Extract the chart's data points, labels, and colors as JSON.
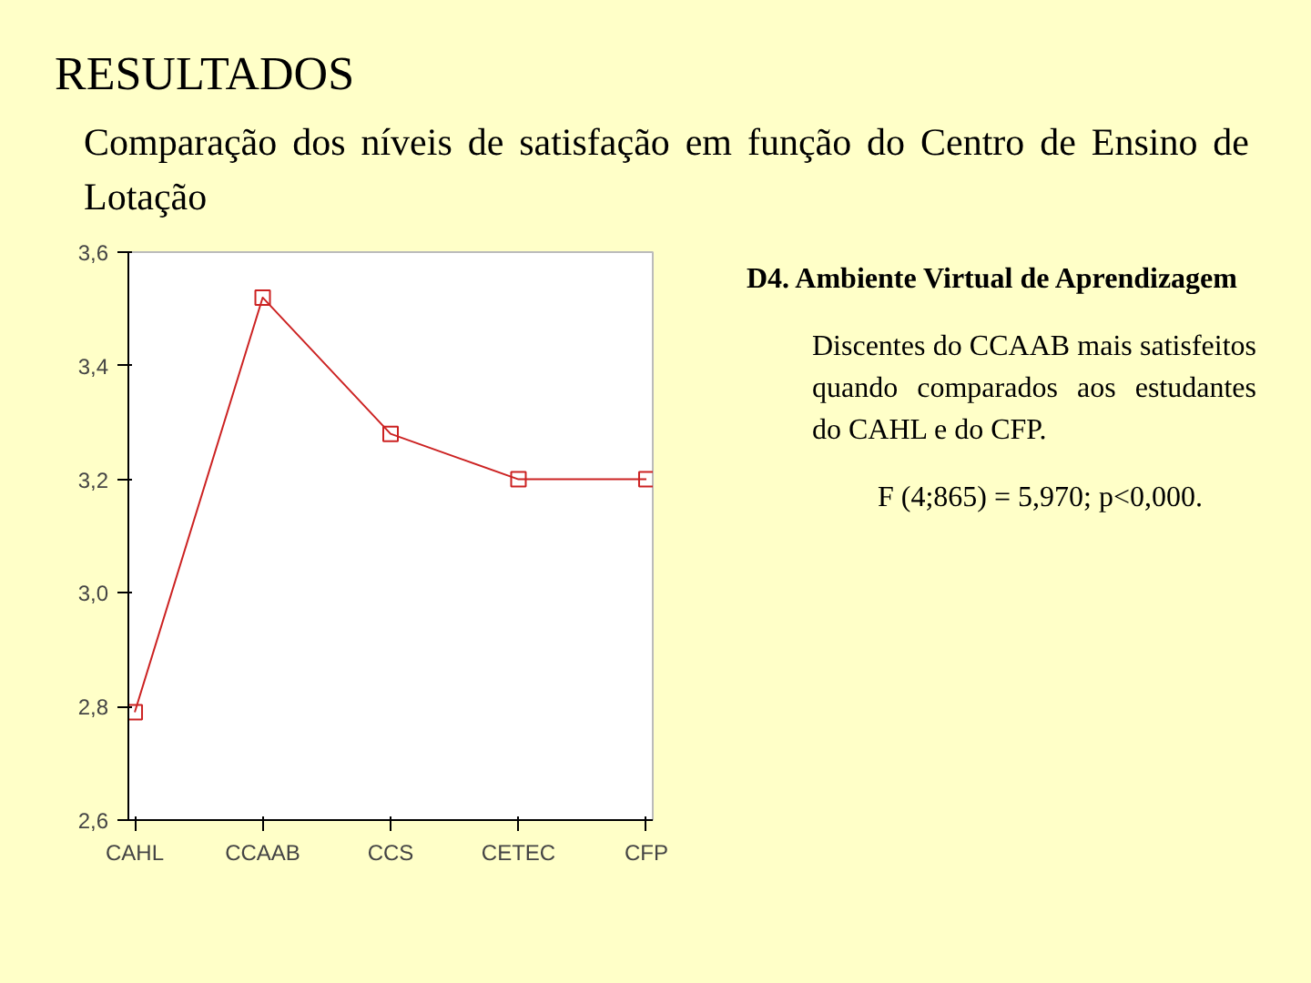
{
  "chart_data": {
    "type": "line",
    "title": "RESULTADOS",
    "subtitle": "Comparação dos níveis de satisfação em função do Centro de Ensino de Lotação",
    "categories": [
      "CAHL",
      "CCAAB",
      "CCS",
      "CETEC",
      "CFP"
    ],
    "values": [
      2.79,
      3.52,
      3.28,
      3.2,
      3.2
    ],
    "color": "#cc2222",
    "marker": "square",
    "line_style": "solid",
    "grid": false,
    "ylim": [
      2.6,
      3.6
    ],
    "yticks": [
      {
        "value": 2.6,
        "label": "2,6"
      },
      {
        "value": 2.8,
        "label": "2,8"
      },
      {
        "value": 3.0,
        "label": "3,0"
      },
      {
        "value": 3.2,
        "label": "3,2"
      },
      {
        "value": 3.4,
        "label": "3,4"
      },
      {
        "value": 3.6,
        "label": "3,6"
      }
    ],
    "annotations": [
      "D4. Ambiente Virtual de Aprendizagem",
      "Discentes do CCAAB mais satisfeitos quando comparados aos estudantes do CAHL e do CFP.",
      "F (4;865) = 5,970; p<0,000."
    ]
  }
}
